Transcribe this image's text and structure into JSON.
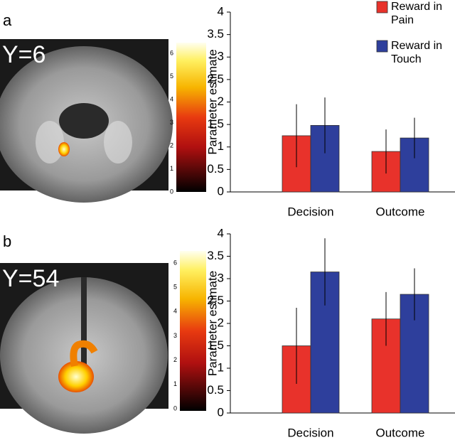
{
  "chart_data": [
    {
      "type": "bar",
      "panel_label": "a",
      "image_label": "Y=6",
      "colorbar_ticks": [
        0,
        1,
        2,
        3,
        4,
        5,
        6
      ],
      "y_label": "Parameter estimate",
      "categories": [
        "Decision",
        "Outcome"
      ],
      "series": [
        {
          "name": "Reward in Pain",
          "color": "#e8322b",
          "values": [
            1.25,
            0.9
          ],
          "errors": [
            0.7,
            0.49
          ]
        },
        {
          "name": "Reward in Touch",
          "color": "#2e3f9c",
          "values": [
            1.48,
            1.2
          ],
          "errors": [
            0.62,
            0.45
          ]
        }
      ],
      "ylim": [
        0,
        4
      ],
      "yticks": [
        0,
        0.5,
        1,
        1.5,
        2,
        2.5,
        3,
        3.5,
        4
      ],
      "legend": "upper right"
    },
    {
      "type": "bar",
      "panel_label": "b",
      "image_label": "Y=54",
      "colorbar_ticks": [
        0,
        1,
        2,
        3,
        4,
        5,
        6
      ],
      "y_label": "Parameter estimate",
      "categories": [
        "Decision",
        "Outcome"
      ],
      "series": [
        {
          "color": "#e8322b",
          "values": [
            1.5,
            2.1
          ],
          "errors": [
            0.85,
            0.6
          ]
        },
        {
          "color": "#2e3f9c",
          "values": [
            3.15,
            2.65
          ],
          "errors": [
            0.75,
            0.58
          ]
        }
      ],
      "ylim": [
        0,
        4
      ],
      "yticks": [
        0,
        0.5,
        1,
        1.5,
        2,
        2.5,
        3,
        3.5,
        4
      ]
    }
  ]
}
